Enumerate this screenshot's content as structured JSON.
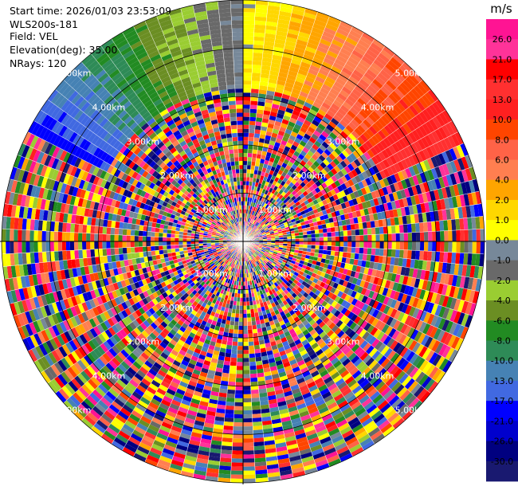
{
  "header": {
    "start_time": "Start time: 2026/01/03 23:53:09",
    "instrument": "WLS200s-181",
    "field": "Field: VEL",
    "elevation": "Elevation(deg): 35.00",
    "nrays": "NRays: 120"
  },
  "chart_data": {
    "type": "heatmap",
    "projection": "polar",
    "field": "VEL",
    "elevation_deg": 35.0,
    "n_rays": 120,
    "range_rings_km": [
      "1.00km",
      "2.00km",
      "3.00km",
      "4.00km",
      "5.00km"
    ],
    "colorbar": {
      "unit": "m/s",
      "ticks": [
        "26.0",
        "21.0",
        "17.0",
        "13.0",
        "10.0",
        "8.0",
        "6.0",
        "4.0",
        "2.0",
        "1.0",
        "0.0",
        "-1.0",
        "-2.0",
        "-4.0",
        "-6.0",
        "-8.0",
        "-10.0",
        "-13.0",
        "-17.0",
        "-21.0",
        "-26.0",
        "-30.0"
      ],
      "colors": [
        "#ff1493",
        "#ff3399",
        "#ff0000",
        "#ff3030",
        "#ff2020",
        "#ff4500",
        "#ff6347",
        "#ff7f50",
        "#ffa500",
        "#ffd700",
        "#ffff00",
        "#778899",
        "#696969",
        "#9acd32",
        "#6b8e23",
        "#228b22",
        "#2e8b57",
        "#4682b4",
        "#4169e1",
        "#0000ff",
        "#0000cd",
        "#000080",
        "#191970"
      ]
    }
  }
}
